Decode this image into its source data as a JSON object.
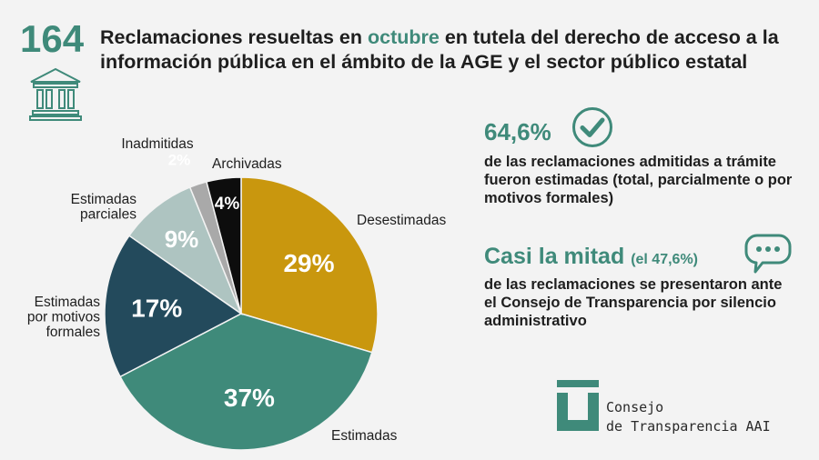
{
  "header": {
    "big_number": "164",
    "title_part1": "Reclamaciones resueltas en ",
    "title_highlight": "octubre",
    "title_part2": " en tutela del derecho de acceso a la información pública en el ámbito de la AGE y el sector público estatal"
  },
  "stats": {
    "stat1_value": "64,6%",
    "stat1_text": "de las reclamaciones admitidas a trámite fueron estimadas (total, parcialmente o por motivos formales)",
    "stat2_value": "Casi la mitad",
    "stat2_sub": "(el 47,6%)",
    "stat2_text": "de las reclamaciones se presentaron ante el Consejo de Transparencia por silencio administrativo"
  },
  "logo": {
    "line1": "Consejo",
    "line2": "de Transparencia AAI"
  },
  "colors": {
    "accent": "#3f8a7a",
    "desestimadas": "#c9970e",
    "estimadas": "#3f8a7a",
    "por_motivos_formales": "#234a5c",
    "parciales": "#aec4c1",
    "inadmitidas": "#a9a9a9",
    "archivadas": "#0d0d0d"
  },
  "chart_data": {
    "type": "pie",
    "slices": [
      {
        "label": "Desestimadas",
        "value": 29,
        "value_label": "29%",
        "color": "#c9970e"
      },
      {
        "label": "Estimadas",
        "value": 37,
        "value_label": "37%",
        "color": "#3f8a7a"
      },
      {
        "label": "Estimadas por motivos formales",
        "value": 17,
        "value_label": "17%",
        "color": "#234a5c"
      },
      {
        "label": "Estimadas parciales",
        "value": 9,
        "value_label": "9%",
        "color": "#aec4c1"
      },
      {
        "label": "Inadmitidas",
        "value": 2,
        "value_label": "2%",
        "color": "#a9a9a9"
      },
      {
        "label": "Archivadas",
        "value": 4,
        "value_label": "4%",
        "color": "#0d0d0d"
      }
    ],
    "category_label_lines": {
      "desestimadas": [
        "Desestimadas"
      ],
      "estimadas": [
        "Estimadas"
      ],
      "por_motivos_formales": [
        "Estimadas",
        "por motivos",
        "formales"
      ],
      "parciales": [
        "Estimadas",
        "parciales"
      ],
      "inadmitidas": [
        "Inadmitidas"
      ],
      "archivadas": [
        "Archivadas"
      ]
    }
  }
}
